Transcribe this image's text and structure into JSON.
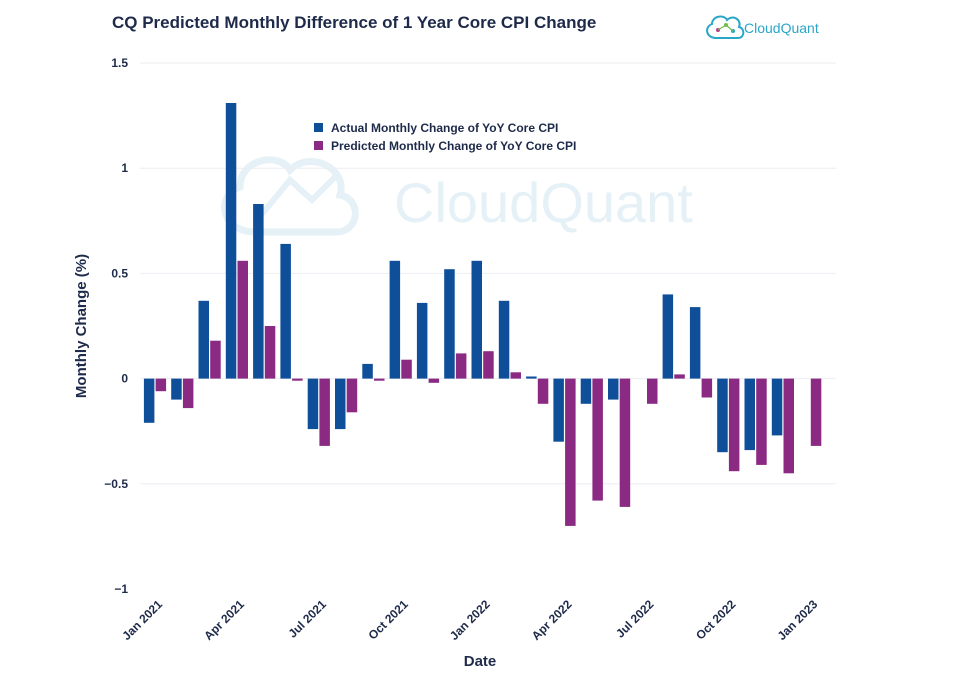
{
  "brand": {
    "name": "CloudQuant"
  },
  "chart_data": {
    "type": "bar",
    "title": "CQ Predicted Monthly Difference of 1 Year Core CPI Change",
    "xlabel": "Date",
    "ylabel": "Monthly Change (%)",
    "ylim": [
      -1,
      1.5
    ],
    "yticks": [
      -1,
      -0.5,
      0,
      0.5,
      1,
      1.5
    ],
    "ytick_labels": [
      "−1",
      "−0.5",
      "0",
      "0.5",
      "1",
      "1.5"
    ],
    "categories": [
      "2021-01",
      "2021-02",
      "2021-03",
      "2021-04",
      "2021-05",
      "2021-06",
      "2021-07",
      "2021-08",
      "2021-09",
      "2021-10",
      "2021-11",
      "2021-12",
      "2022-01",
      "2022-02",
      "2022-03",
      "2022-04",
      "2022-05",
      "2022-06",
      "2022-07",
      "2022-08",
      "2022-09",
      "2022-10",
      "2022-11",
      "2022-12",
      "2023-01"
    ],
    "xticks": [
      {
        "label": "Jan 2021",
        "index": 0
      },
      {
        "label": "Apr 2021",
        "index": 3
      },
      {
        "label": "Jul 2021",
        "index": 6
      },
      {
        "label": "Oct 2021",
        "index": 9
      },
      {
        "label": "Jan 2022",
        "index": 12
      },
      {
        "label": "Apr 2022",
        "index": 15
      },
      {
        "label": "Jul 2022",
        "index": 18
      },
      {
        "label": "Oct 2022",
        "index": 21
      },
      {
        "label": "Jan 2023",
        "index": 24
      }
    ],
    "grid": true,
    "legend_position": "top-center",
    "series": [
      {
        "name": "Actual Monthly Change of YoY Core CPI",
        "color": "#0f4f99",
        "values": [
          -0.21,
          -0.1,
          0.37,
          1.31,
          0.83,
          0.64,
          -0.24,
          -0.24,
          0.07,
          0.56,
          0.36,
          0.52,
          0.56,
          0.37,
          0.01,
          -0.3,
          -0.12,
          -0.1,
          null,
          0.4,
          0.34,
          -0.35,
          -0.34,
          -0.27,
          null
        ]
      },
      {
        "name": "Predicted Monthly Change of YoY Core CPI",
        "color": "#8b2a82",
        "values": [
          -0.06,
          -0.14,
          0.18,
          0.56,
          0.25,
          -0.01,
          -0.32,
          -0.16,
          -0.01,
          0.09,
          -0.02,
          0.12,
          0.13,
          0.03,
          -0.12,
          -0.7,
          -0.58,
          -0.61,
          -0.12,
          0.02,
          -0.09,
          -0.44,
          -0.41,
          -0.45,
          -0.32
        ]
      }
    ]
  }
}
